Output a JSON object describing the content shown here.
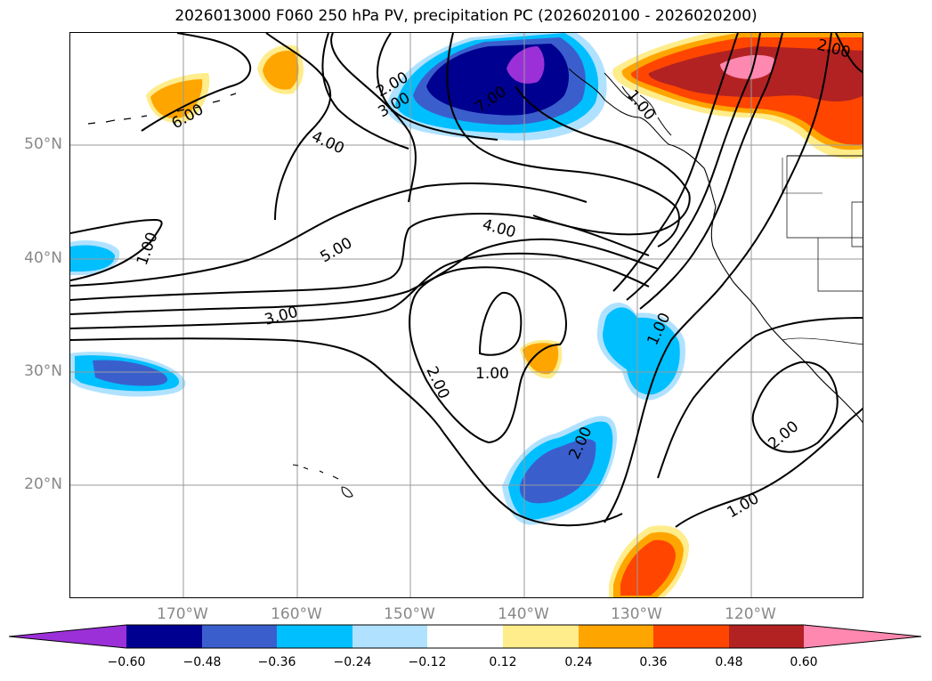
{
  "title": "2026013000 F060 250 hPa PV, precipitation PC (2026020100 - 2026020200)",
  "latitude_labels": [
    "50°N",
    "40°N",
    "30°N",
    "20°N"
  ],
  "longitude_labels": [
    "170°W",
    "160°W",
    "150°W",
    "140°W",
    "130°W",
    "120°W"
  ],
  "contour_labels": [
    "6.00",
    "2.00",
    "3.00",
    "4.00",
    "7.00",
    "5.00",
    "4.00",
    "1.00",
    "3.00",
    "1.00",
    "2.00",
    "1.00",
    "2.00",
    "2.00",
    "1.00",
    "2.00",
    "1.00"
  ],
  "colorbar": {
    "tick_labels": [
      "−0.60",
      "−0.48",
      "−0.36",
      "−0.24",
      "−0.12",
      "0.12",
      "0.24",
      "0.36",
      "0.48",
      "0.60"
    ],
    "colors": [
      "#9B30D8",
      "#000090",
      "#3A5FCD",
      "#00BFFF",
      "#B0E2FF",
      "#FFFFFF",
      "#FFEC8B",
      "#FFA500",
      "#FF4500",
      "#B22222",
      "#FF88B0"
    ]
  },
  "colors": {
    "contour": "#000000",
    "grid": "#9a9a9a",
    "axis_label": "#888888"
  }
}
